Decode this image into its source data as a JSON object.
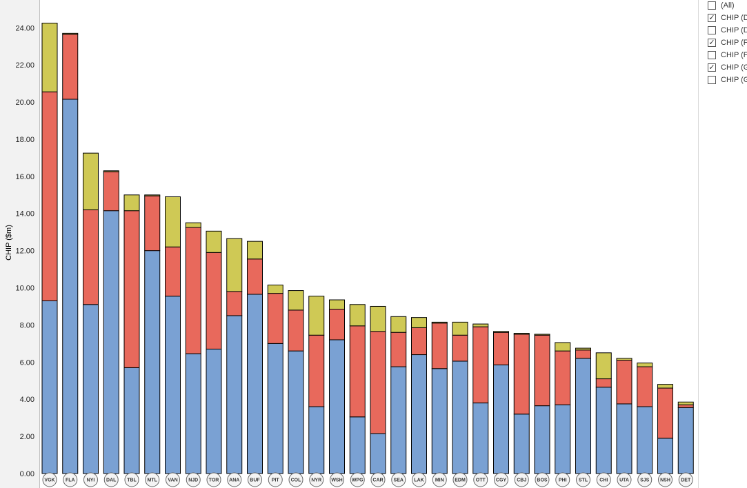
{
  "filter": {
    "items": [
      {
        "label": "(All)",
        "checked": false
      },
      {
        "label": "CHIP (D",
        "checked": true
      },
      {
        "label": "CHIP (D",
        "checked": false
      },
      {
        "label": "CHIP (F",
        "checked": true
      },
      {
        "label": "CHIP (F",
        "checked": false
      },
      {
        "label": "CHIP (G",
        "checked": true
      },
      {
        "label": "CHIP (G",
        "checked": false
      }
    ],
    "check_glyph": "✓"
  },
  "chart_data": {
    "type": "bar",
    "stacked": true,
    "ylabel": "CHIP ($m)",
    "xlabel": "",
    "ylim": [
      0,
      24.9
    ],
    "yticks": [
      "0.00",
      "2.00",
      "4.00",
      "6.00",
      "8.00",
      "10.00",
      "12.00",
      "14.00",
      "16.00",
      "18.00",
      "20.00",
      "22.00",
      "24.00"
    ],
    "categories": [
      "VGK",
      "FLA",
      "NYI",
      "DAL",
      "TBL",
      "MTL",
      "VAN",
      "NJD",
      "TOR",
      "ANA",
      "BUF",
      "PIT",
      "COL",
      "NYR",
      "WSH",
      "WPG",
      "CAR",
      "SEA",
      "LAK",
      "MIN",
      "EDM",
      "OTT",
      "CGY",
      "CBJ",
      "BOS",
      "PHI",
      "STL",
      "CHI",
      "UTA",
      "SJS",
      "NSH",
      "DET"
    ],
    "series": [
      {
        "name": "Blue",
        "color": "#7aa1d3",
        "values": [
          9.3,
          20.15,
          9.1,
          14.15,
          5.7,
          12.0,
          9.55,
          6.45,
          6.7,
          8.5,
          9.65,
          7.0,
          6.6,
          3.6,
          7.2,
          3.05,
          2.15,
          5.75,
          6.4,
          5.65,
          6.05,
          3.8,
          5.85,
          3.2,
          3.65,
          3.7,
          6.2,
          4.65,
          3.75,
          3.6,
          1.9,
          3.55
        ]
      },
      {
        "name": "Red",
        "color": "#e8695c",
        "values": [
          11.25,
          3.5,
          5.1,
          2.1,
          8.45,
          2.95,
          2.65,
          6.8,
          5.2,
          1.3,
          1.9,
          2.7,
          2.2,
          3.85,
          1.65,
          4.9,
          5.5,
          1.85,
          1.45,
          2.45,
          1.4,
          4.1,
          1.75,
          4.3,
          3.8,
          2.9,
          0.45,
          0.45,
          2.35,
          2.15,
          2.7,
          0.15
        ]
      },
      {
        "name": "Yellow",
        "color": "#cfc955",
        "values": [
          3.7,
          0.05,
          3.05,
          0.05,
          0.85,
          0.05,
          2.7,
          0.25,
          1.15,
          2.85,
          0.95,
          0.45,
          1.05,
          2.1,
          0.5,
          1.15,
          1.35,
          0.85,
          0.55,
          0.05,
          0.7,
          0.15,
          0.05,
          0.05,
          0.05,
          0.45,
          0.1,
          1.4,
          0.1,
          0.2,
          0.2,
          0.15
        ]
      }
    ]
  }
}
